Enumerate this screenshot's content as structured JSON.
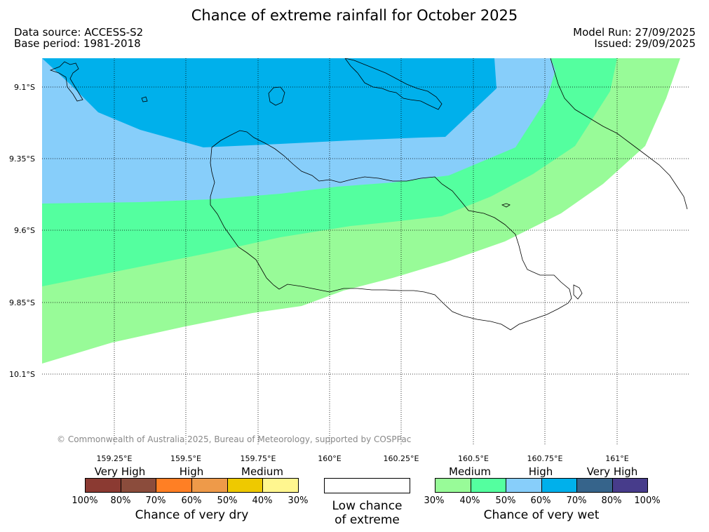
{
  "header": {
    "title": "Chance of extreme rainfall for October 2025",
    "data_source": "Data source: ACCESS-S2",
    "base_period": "Base period: 1981-2018",
    "model_run": "Model Run: 27/09/2025",
    "issued": "Issued: 29/09/2025"
  },
  "map": {
    "lat_labels": [
      "9.1°S",
      "9.35°S",
      "9.6°S",
      "9.85°S",
      "10.1°S"
    ],
    "lon_labels": [
      "159.25°E",
      "159.5°E",
      "159.75°E",
      "160°E",
      "160.25°E",
      "160.5°E",
      "160.75°E",
      "161°E"
    ],
    "copyright": "© Commonwealth of Australia 2025, Bureau of Meteorology, supported by COSPPac",
    "zones": {
      "wet_30_40": "#98fb98",
      "wet_40_50": "#54ff9f",
      "wet_50_60": "#87cefa",
      "wet_60_70": "#00b0eb"
    }
  },
  "legend": {
    "dry": {
      "levels": [
        "Very High",
        "High",
        "Medium"
      ],
      "ticks": [
        "100%",
        "80%",
        "70%",
        "60%",
        "50%",
        "40%",
        "30%"
      ],
      "colors": [
        "#8b3a32",
        "#8b4c3c",
        "#ff7f24",
        "#ee9a49",
        "#eec900",
        "#fff68f"
      ],
      "caption": "Chance of very dry"
    },
    "neutral": {
      "caption_line1": "Low chance",
      "caption_line2": "of extreme"
    },
    "wet": {
      "levels": [
        "Medium",
        "High",
        "Very High"
      ],
      "ticks": [
        "30%",
        "40%",
        "50%",
        "60%",
        "70%",
        "80%",
        "100%"
      ],
      "colors": [
        "#98fb98",
        "#54ff9f",
        "#87cefa",
        "#00b0eb",
        "#36648b",
        "#473c8b"
      ],
      "caption": "Chance of very wet"
    }
  }
}
